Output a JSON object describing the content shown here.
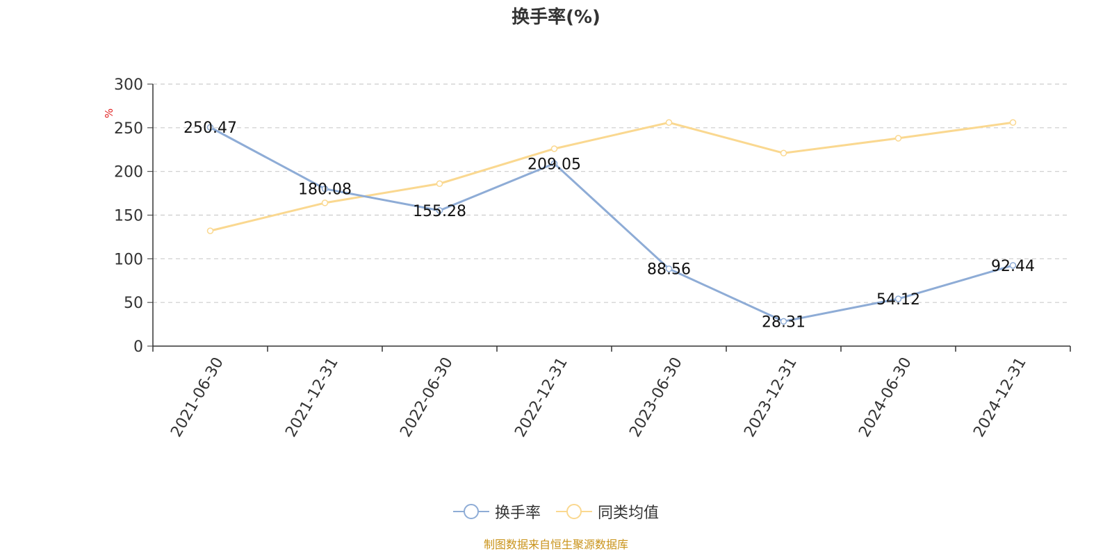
{
  "chart_data": {
    "type": "line",
    "title": "换手率(%)",
    "ylabel": "%",
    "xlabel": "",
    "categories": [
      "2021-06-30",
      "2021-12-31",
      "2022-06-30",
      "2022-12-31",
      "2023-06-30",
      "2023-12-31",
      "2024-06-30",
      "2024-12-31"
    ],
    "ylim": [
      0,
      300
    ],
    "yticks": [
      "0",
      "50",
      "100",
      "150",
      "200",
      "250",
      "300"
    ],
    "grid": true,
    "legend_position": "bottom",
    "series": [
      {
        "name": "换手率",
        "color": "#8eacd6",
        "values": [
          250.47,
          180.08,
          155.28,
          209.05,
          88.56,
          28.31,
          54.12,
          92.44
        ],
        "data_labels": [
          "250.47",
          "180.08",
          "155.28",
          "209.05",
          "88.56",
          "28.31",
          "54.12",
          "92.44"
        ]
      },
      {
        "name": "同类均值",
        "color": "#fad890",
        "values": [
          132,
          164,
          186,
          226,
          256,
          221,
          238,
          256
        ]
      }
    ]
  },
  "source_note": "制图数据来自恒生聚源数据库"
}
